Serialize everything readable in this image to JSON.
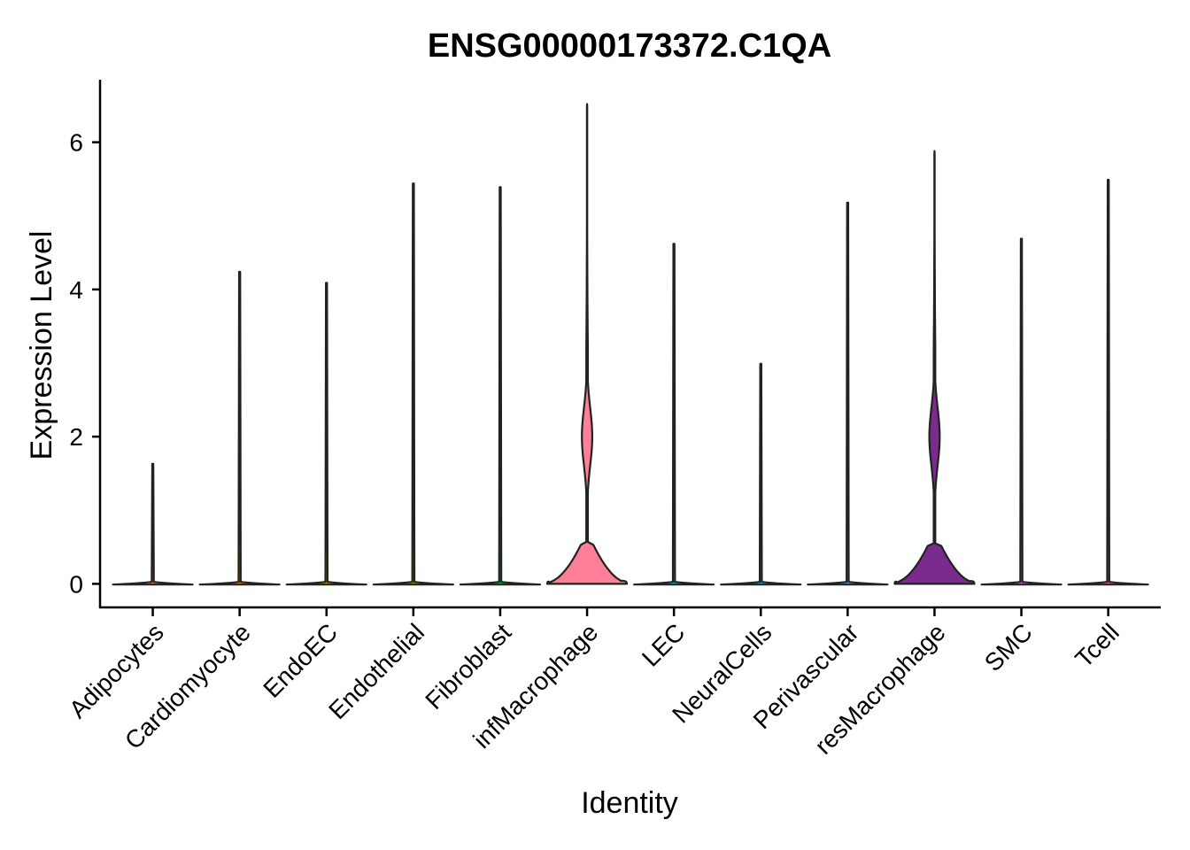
{
  "chart_data": {
    "type": "violin",
    "title": "ENSG00000173372.C1QA",
    "xlabel": "Identity",
    "ylabel": "Expression Level",
    "ylim": [
      -0.32,
      6.85
    ],
    "yticks": [
      0,
      2,
      4,
      6
    ],
    "grid": false,
    "legend": "none",
    "categories": [
      "Adipocytes",
      "Cardiomyocyte",
      "EndoEC",
      "Endothelial",
      "Fibroblast",
      "infMacrophage",
      "LEC",
      "NeuralCells",
      "Perivascular",
      "resMacrophage",
      "SMC",
      "Tcell"
    ],
    "max_values": [
      1.63,
      4.24,
      4.09,
      5.44,
      5.39,
      6.52,
      4.62,
      2.99,
      5.18,
      5.88,
      4.69,
      5.49
    ],
    "colors": [
      "#F8766D",
      "#DE8C00",
      "#B79F00",
      "#7CAE00",
      "#00BA38",
      "#FF7F98",
      "#00BFC4",
      "#00B4F0",
      "#619CFF",
      "#7B2B8E",
      "#F564E3",
      "#FF64B0"
    ]
  }
}
